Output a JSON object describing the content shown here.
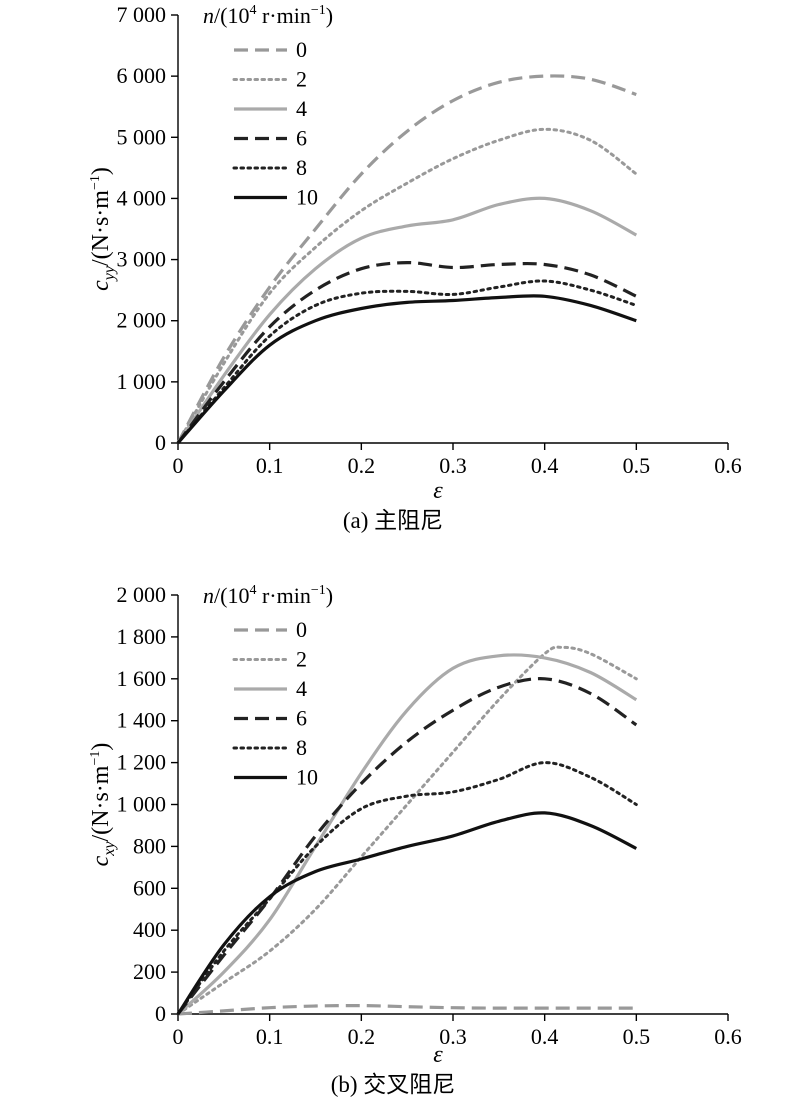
{
  "chart_data": [
    {
      "type": "line",
      "caption": "(a) 主阻尼",
      "xlabel": "ε",
      "ylabel_main": "c",
      "ylabel_sub": "yy",
      "ylabel_rest": "/(N·s·m",
      "ylabel_sup": "−1",
      "ylabel_end": ")",
      "legend_title": {
        "var": "n",
        "pre": "/(10",
        "sup": "4",
        "post": " r·min",
        "sup2": "−1",
        "end": ")"
      },
      "xlim": [
        0,
        0.6
      ],
      "ylim": [
        0,
        7000
      ],
      "xticks": [
        0,
        0.1,
        0.2,
        0.3,
        0.4,
        0.5,
        0.6
      ],
      "xtick_labels": [
        "0",
        "0.1",
        "0.2",
        "0.3",
        "0.4",
        "0.5",
        "0.6"
      ],
      "yticks": [
        0,
        1000,
        2000,
        3000,
        4000,
        5000,
        6000,
        7000
      ],
      "ytick_labels": [
        "0",
        "1 000",
        "2 000",
        "3 000",
        "4 000",
        "5 000",
        "6 000",
        "7 000"
      ],
      "grid": false,
      "legend_position": "top-left",
      "series": [
        {
          "name": "0",
          "color": "#999999",
          "style": "dash",
          "x": [
            0,
            0.05,
            0.1,
            0.15,
            0.2,
            0.25,
            0.3,
            0.35,
            0.4,
            0.45,
            0.5
          ],
          "y": [
            0,
            1400,
            2550,
            3500,
            4400,
            5100,
            5600,
            5900,
            6000,
            5950,
            5700
          ]
        },
        {
          "name": "2",
          "color": "#999999",
          "style": "dot",
          "x": [
            0,
            0.05,
            0.1,
            0.15,
            0.2,
            0.25,
            0.3,
            0.35,
            0.4,
            0.45,
            0.5
          ],
          "y": [
            0,
            1300,
            2450,
            3200,
            3800,
            4250,
            4650,
            4950,
            5130,
            4950,
            4400
          ]
        },
        {
          "name": "4",
          "color": "#aaaaaa",
          "style": "solid",
          "x": [
            0,
            0.05,
            0.1,
            0.15,
            0.2,
            0.25,
            0.3,
            0.35,
            0.4,
            0.45,
            0.5
          ],
          "y": [
            0,
            1100,
            2100,
            2850,
            3350,
            3550,
            3650,
            3900,
            4000,
            3800,
            3400
          ]
        },
        {
          "name": "6",
          "color": "#222222",
          "style": "dash",
          "x": [
            0,
            0.05,
            0.1,
            0.15,
            0.2,
            0.25,
            0.3,
            0.35,
            0.4,
            0.45,
            0.5
          ],
          "y": [
            0,
            1000,
            1900,
            2500,
            2850,
            2950,
            2870,
            2920,
            2920,
            2750,
            2400
          ]
        },
        {
          "name": "8",
          "color": "#222222",
          "style": "dot",
          "x": [
            0,
            0.05,
            0.1,
            0.15,
            0.2,
            0.25,
            0.3,
            0.35,
            0.4,
            0.45,
            0.5
          ],
          "y": [
            0,
            900,
            1750,
            2250,
            2450,
            2480,
            2430,
            2550,
            2650,
            2500,
            2250
          ]
        },
        {
          "name": "10",
          "color": "#111111",
          "style": "solid",
          "x": [
            0,
            0.05,
            0.1,
            0.15,
            0.2,
            0.25,
            0.3,
            0.35,
            0.4,
            0.45,
            0.5
          ],
          "y": [
            0,
            850,
            1600,
            2000,
            2200,
            2300,
            2330,
            2380,
            2400,
            2250,
            2000
          ]
        }
      ]
    },
    {
      "type": "line",
      "caption": "(b) 交叉阻尼",
      "xlabel": "ε",
      "ylabel_main": "c",
      "ylabel_sub": "xy",
      "ylabel_rest": "/(N·s·m",
      "ylabel_sup": "−1",
      "ylabel_end": ")",
      "legend_title": {
        "var": "n",
        "pre": "/(10",
        "sup": "4",
        "post": " r·min",
        "sup2": "−1",
        "end": ")"
      },
      "xlim": [
        0,
        0.6
      ],
      "ylim": [
        0,
        2000
      ],
      "xticks": [
        0,
        0.1,
        0.2,
        0.3,
        0.4,
        0.5,
        0.6
      ],
      "xtick_labels": [
        "0",
        "0.1",
        "0.2",
        "0.3",
        "0.4",
        "0.5",
        "0.6"
      ],
      "yticks": [
        0,
        200,
        400,
        600,
        800,
        1000,
        1200,
        1400,
        1600,
        1800,
        2000
      ],
      "ytick_labels": [
        "0",
        "200",
        "400",
        "600",
        "800",
        "1 000",
        "1 200",
        "1 400",
        "1 600",
        "1 800",
        "2 000"
      ],
      "grid": false,
      "legend_position": "top-left",
      "series": [
        {
          "name": "0",
          "color": "#999999",
          "style": "dash",
          "x": [
            0,
            0.05,
            0.1,
            0.15,
            0.2,
            0.25,
            0.3,
            0.35,
            0.4,
            0.45,
            0.5
          ],
          "y": [
            0,
            15,
            30,
            38,
            40,
            35,
            30,
            28,
            28,
            28,
            28
          ]
        },
        {
          "name": "2",
          "color": "#999999",
          "style": "dot",
          "x": [
            0,
            0.05,
            0.1,
            0.15,
            0.2,
            0.25,
            0.3,
            0.35,
            0.4,
            0.42,
            0.45,
            0.5
          ],
          "y": [
            0,
            150,
            300,
            500,
            750,
            1000,
            1250,
            1500,
            1720,
            1750,
            1720,
            1600
          ]
        },
        {
          "name": "4",
          "color": "#aaaaaa",
          "style": "solid",
          "x": [
            0,
            0.05,
            0.1,
            0.15,
            0.2,
            0.25,
            0.3,
            0.35,
            0.4,
            0.45,
            0.5
          ],
          "y": [
            0,
            200,
            450,
            800,
            1150,
            1450,
            1650,
            1710,
            1700,
            1630,
            1500
          ]
        },
        {
          "name": "6",
          "color": "#222222",
          "style": "dash",
          "x": [
            0,
            0.05,
            0.1,
            0.15,
            0.2,
            0.25,
            0.3,
            0.35,
            0.4,
            0.45,
            0.5
          ],
          "y": [
            0,
            280,
            550,
            850,
            1100,
            1300,
            1450,
            1560,
            1600,
            1530,
            1380
          ]
        },
        {
          "name": "8",
          "color": "#222222",
          "style": "dot",
          "x": [
            0,
            0.05,
            0.1,
            0.15,
            0.2,
            0.25,
            0.3,
            0.35,
            0.4,
            0.45,
            0.5
          ],
          "y": [
            0,
            300,
            550,
            800,
            980,
            1040,
            1060,
            1120,
            1200,
            1130,
            1000
          ]
        },
        {
          "name": "10",
          "color": "#111111",
          "style": "solid",
          "x": [
            0,
            0.05,
            0.1,
            0.15,
            0.2,
            0.25,
            0.3,
            0.35,
            0.4,
            0.45,
            0.5
          ],
          "y": [
            0,
            330,
            560,
            680,
            740,
            800,
            850,
            920,
            960,
            900,
            790
          ]
        }
      ]
    }
  ]
}
